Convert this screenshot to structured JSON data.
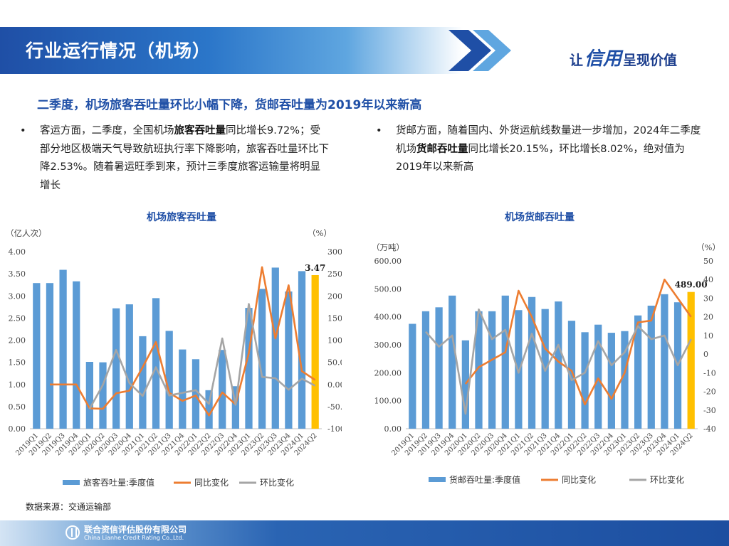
{
  "header": {
    "title": "行业运行情况（机场）",
    "slogan_prefix": "让",
    "slogan_big": "信用",
    "slogan_suffix": "呈现价值"
  },
  "subtitle": "二季度，机场旅客吞吐量环比小幅下降，货邮吞吐量为2019年以来新高",
  "bullets": {
    "left": {
      "part1": "客运方面，二季度，全国机场",
      "bold": "旅客吞吐量",
      "part2": "同比增长9.72%；受部分地区极端天气导致航班执行率下降影响，旅客吞吐量环比下降2.53%。随着暑运旺季到来，预计三季度旅客运输量将明显增长"
    },
    "right": {
      "part1": "货邮方面，随着国内、外货运航线数量进一步增加，2024年二季度机场",
      "bold": "货邮吞吐量",
      "part2": "同比增长20.15%，环比增长8.02%，绝对值为2019年以来新高"
    }
  },
  "source": "数据来源：交通运输部",
  "footer": {
    "name": "联合资信评估股份有限公司",
    "english": "China Lianhe Credit Rating Co.,Ltd."
  },
  "colors": {
    "bar": "#5b9bd5",
    "bar_highlight": "#ffc000",
    "yoy": "#ed7d31",
    "qoq": "#a5a5a5",
    "title_blue": "#1f4fa6"
  },
  "chart_data": [
    {
      "type": "bar",
      "title": "机场旅客吞吐量",
      "left_unit": "（亿人次）",
      "right_unit": "（%）",
      "categories": [
        "2019Q1",
        "2019Q2",
        "2019Q3",
        "2019Q4",
        "2020Q1",
        "2020Q2",
        "2020Q3",
        "2020Q4",
        "2021Q1",
        "2021Q2",
        "2021Q3",
        "2021Q4",
        "2022Q1",
        "2022Q2",
        "2022Q3",
        "2022Q4",
        "2023Q1",
        "2023Q2",
        "2023Q3",
        "2023Q4",
        "2024Q1",
        "2024Q2"
      ],
      "ylim": [
        0,
        4
      ],
      "y_ticks": [
        "0.00",
        "0.50",
        "1.00",
        "1.50",
        "2.00",
        "2.50",
        "3.00",
        "3.50",
        "4.00"
      ],
      "y2lim": [
        -100,
        300
      ],
      "y2_ticks": [
        "-100.00",
        "-50.00",
        "0.00",
        "50.00",
        "100.00",
        "150.00",
        "200.00",
        "250.00",
        "300.00"
      ],
      "last_label": "3.47",
      "series": [
        {
          "name": "旅客吞吐量:季度值",
          "type": "bar",
          "axis": "left",
          "values": [
            3.29,
            3.29,
            3.59,
            3.33,
            1.51,
            1.5,
            2.72,
            2.81,
            2.09,
            2.95,
            2.21,
            1.79,
            1.57,
            0.87,
            1.78,
            0.96,
            2.73,
            3.16,
            3.64,
            3.1,
            3.56,
            3.47
          ]
        },
        {
          "name": "同比变化",
          "type": "line",
          "axis": "right",
          "values": [
            null,
            0,
            0,
            0,
            -54,
            -55,
            -20,
            -14,
            39,
            96,
            -19,
            -37,
            -25,
            -70,
            -18,
            -45,
            71,
            265,
            104,
            224,
            30,
            10
          ]
        },
        {
          "name": "环比变化",
          "type": "line",
          "axis": "right",
          "values": [
            null,
            null,
            null,
            null,
            -55,
            -1,
            78,
            3,
            -26,
            39,
            -25,
            -19,
            -13,
            -44,
            104,
            -46,
            182,
            17,
            14,
            -12,
            13,
            -3
          ]
        }
      ],
      "legend_position": "bottom"
    },
    {
      "type": "bar",
      "title": "机场货邮吞吐量",
      "left_unit": "（万吨）",
      "right_unit": "（%）",
      "categories": [
        "2019Q1",
        "2019Q2",
        "2019Q3",
        "2019Q4",
        "2020Q1",
        "2020Q2",
        "2020Q3",
        "2020Q4",
        "2021Q1",
        "2021Q2",
        "2021Q3",
        "2021Q4",
        "2022Q1",
        "2022Q2",
        "2022Q3",
        "2022Q4",
        "2023Q1",
        "2023Q2",
        "2023Q3",
        "2023Q4",
        "2024Q1",
        "2024Q2"
      ],
      "ylim": [
        0,
        600
      ],
      "y_ticks": [
        "0.00",
        "100.00",
        "200.00",
        "300.00",
        "400.00",
        "500.00",
        "600.00"
      ],
      "y2lim": [
        -40,
        50
      ],
      "y2_ticks": [
        "-40",
        "-30",
        "-20",
        "-10",
        "0",
        "10",
        "20",
        "30",
        "40",
        "50"
      ],
      "last_label": "489.00",
      "series": [
        {
          "name": "货邮吞吐量:季度值",
          "type": "bar",
          "axis": "left",
          "values": [
            375,
            420,
            434,
            476,
            316,
            420,
            420,
            476,
            424,
            471,
            428,
            455,
            386,
            345,
            372,
            343,
            349,
            405,
            440,
            481,
            452,
            489
          ]
        },
        {
          "name": "同比变化",
          "type": "line",
          "axis": "right",
          "values": [
            null,
            null,
            null,
            null,
            -16,
            -7,
            -3,
            1,
            34,
            20,
            3,
            -4,
            -9,
            -27,
            -13,
            -24,
            -10,
            17,
            18,
            40,
            30,
            20
          ]
        },
        {
          "name": "环比变化",
          "type": "line",
          "axis": "right",
          "values": [
            null,
            12,
            4,
            10,
            -32,
            24,
            8,
            13,
            -10,
            11,
            -9,
            5,
            -14,
            -10,
            7,
            -6,
            1,
            15,
            8,
            10,
            -6,
            8
          ]
        }
      ],
      "legend_position": "bottom"
    }
  ]
}
